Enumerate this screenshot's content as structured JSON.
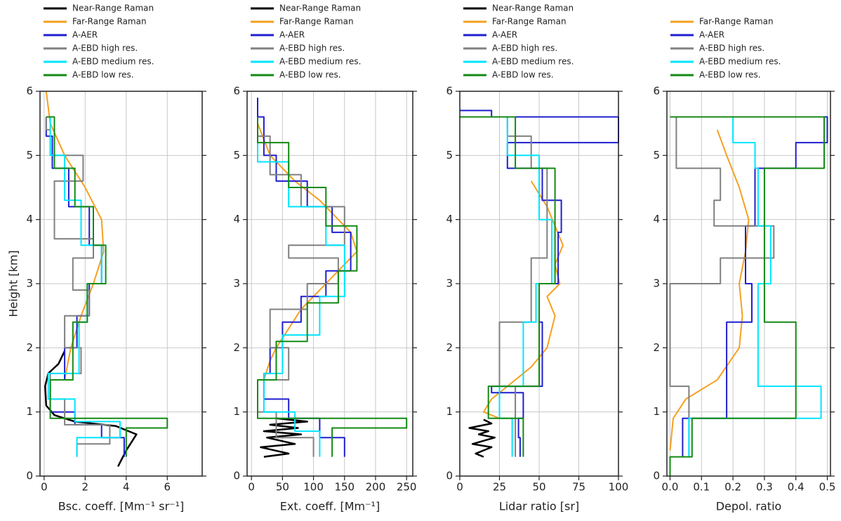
{
  "chart_data": [
    {
      "type": "line",
      "xlabel": "Bsc. coeff. [Mm⁻¹ sr⁻¹]",
      "ylabel": "Height [km]",
      "xlim": [
        -0.2,
        7.7
      ],
      "ylim": [
        0,
        6
      ],
      "xticks": [
        0,
        2,
        4,
        6
      ],
      "yticks": [
        0,
        1,
        2,
        3,
        4,
        5,
        6
      ],
      "grid": true,
      "series": [
        {
          "name": "Near-Range Raman",
          "color": "#000000",
          "x": [
            3.6,
            4.0,
            4.5,
            3.5,
            1.5,
            0.5,
            0.1,
            0.05,
            0.2,
            0.7,
            1.0
          ],
          "y": [
            0.15,
            0.4,
            0.65,
            0.78,
            0.85,
            0.95,
            1.1,
            1.4,
            1.6,
            1.75,
            1.95
          ]
        },
        {
          "name": "Far-Range Raman",
          "color": "#f5a020",
          "x": [
            1.0,
            1.3,
            1.8,
            2.4,
            2.9,
            2.8,
            2.0,
            1.0,
            0.3,
            0.1
          ],
          "y": [
            1.5,
            2.0,
            2.5,
            3.0,
            3.5,
            4.0,
            4.5,
            5.0,
            5.5,
            6.0
          ]
        },
        {
          "name": "A-AER",
          "color": "#1f1fd0",
          "x": [
            3.9,
            3.9,
            2.8,
            2.8,
            1.5,
            1.5,
            0.3,
            0.3,
            1.0,
            1.0,
            1.6,
            1.6,
            2.2,
            2.2,
            2.8,
            2.8,
            2.2,
            2.2,
            1.2,
            1.2,
            0.4,
            0.4,
            0.1,
            0.1
          ],
          "y": [
            0.3,
            0.6,
            0.6,
            0.8,
            0.8,
            1.0,
            1.0,
            1.5,
            1.5,
            2.0,
            2.0,
            2.5,
            2.5,
            3.0,
            3.0,
            3.6,
            3.6,
            4.2,
            4.2,
            4.8,
            4.8,
            5.3,
            5.3,
            5.6
          ]
        },
        {
          "name": "A-EBD high res.",
          "color": "#808080",
          "x": [
            1.6,
            1.6,
            3.2,
            3.2,
            1.0,
            1.0,
            0.3,
            0.3,
            1.8,
            1.8,
            1.0,
            1.0,
            2.2,
            2.2,
            1.4,
            1.4,
            2.4,
            2.4,
            0.5,
            0.5,
            1.9,
            1.9,
            0.3,
            0.3,
            0.1,
            0.1
          ],
          "y": [
            0.3,
            0.5,
            0.5,
            0.8,
            0.8,
            1.2,
            1.2,
            1.6,
            1.6,
            2.0,
            2.0,
            2.5,
            2.5,
            2.9,
            2.9,
            3.4,
            3.4,
            3.7,
            3.7,
            4.6,
            4.6,
            5.0,
            5.0,
            5.4,
            5.4,
            5.6
          ]
        },
        {
          "name": "A-EBD medium res.",
          "color": "#00e5ff",
          "x": [
            1.6,
            1.6,
            3.7,
            3.7,
            1.5,
            1.5,
            0.2,
            0.2,
            1.7,
            1.7,
            2.1,
            2.1,
            2.8,
            2.8,
            1.8,
            1.8,
            1.0,
            1.0,
            0.3,
            0.3,
            0.1
          ],
          "y": [
            0.3,
            0.6,
            0.6,
            0.85,
            0.85,
            1.2,
            1.2,
            1.6,
            1.6,
            2.4,
            2.4,
            3.0,
            3.0,
            3.6,
            3.6,
            4.3,
            4.3,
            5.0,
            5.0,
            5.6,
            5.6
          ]
        },
        {
          "name": "A-EBD low res.",
          "color": "#138a13",
          "x": [
            4.0,
            4.0,
            6.0,
            6.0,
            0.3,
            0.3,
            1.4,
            1.4,
            2.1,
            2.1,
            3.0,
            3.0,
            2.4,
            2.4,
            1.5,
            1.5,
            0.5,
            0.5,
            0.1,
            0.1
          ],
          "y": [
            0.3,
            0.75,
            0.75,
            0.9,
            0.9,
            1.5,
            1.5,
            2.4,
            2.4,
            3.0,
            3.0,
            3.6,
            3.6,
            4.2,
            4.2,
            4.8,
            4.8,
            5.6,
            5.6,
            5.6
          ]
        }
      ]
    },
    {
      "type": "line",
      "xlabel": "Ext. coeff. [Mm⁻¹]",
      "xlim": [
        -7,
        260
      ],
      "ylim": [
        0,
        6
      ],
      "xticks": [
        0,
        50,
        100,
        150,
        200,
        250
      ],
      "yticks": [
        0,
        1,
        2,
        3,
        4,
        5,
        6
      ],
      "grid": true,
      "series": [
        {
          "name": "Near-Range Raman",
          "color": "#000000",
          "x": [
            20,
            60,
            15,
            70,
            25,
            80,
            20,
            75,
            30,
            90,
            40
          ],
          "y": [
            0.3,
            0.35,
            0.45,
            0.5,
            0.6,
            0.65,
            0.7,
            0.75,
            0.8,
            0.85,
            0.9
          ]
        },
        {
          "name": "Far-Range Raman",
          "color": "#f5a020",
          "x": [
            20,
            30,
            40,
            60,
            80,
            110,
            140,
            170,
            160,
            140,
            110,
            70,
            30,
            10
          ],
          "y": [
            1.5,
            1.8,
            2.0,
            2.3,
            2.6,
            2.9,
            3.2,
            3.5,
            3.8,
            4.0,
            4.3,
            4.6,
            5.0,
            5.5
          ]
        },
        {
          "name": "A-AER",
          "color": "#1f1fd0",
          "x": [
            150,
            150,
            110,
            110,
            60,
            60,
            20,
            20,
            30,
            30,
            50,
            50,
            80,
            80,
            120,
            120,
            160,
            160,
            130,
            130,
            90,
            90,
            40,
            40,
            20,
            20,
            10,
            10
          ],
          "y": [
            0.3,
            0.6,
            0.6,
            0.9,
            0.9,
            1.2,
            1.2,
            1.6,
            1.6,
            2.0,
            2.0,
            2.4,
            2.4,
            2.8,
            2.8,
            3.2,
            3.2,
            3.8,
            3.8,
            4.2,
            4.2,
            4.6,
            4.6,
            5.0,
            5.0,
            5.6,
            5.6,
            5.9
          ]
        },
        {
          "name": "A-EBD high res.",
          "color": "#808080",
          "x": [
            100,
            100,
            40,
            40,
            10,
            10,
            60,
            60,
            30,
            30,
            90,
            90,
            140,
            140,
            60,
            60,
            150,
            150,
            80,
            80,
            30,
            30,
            10
          ],
          "y": [
            0.3,
            0.6,
            0.6,
            1.0,
            1.0,
            1.5,
            1.5,
            2.0,
            2.0,
            2.6,
            2.6,
            3.0,
            3.0,
            3.4,
            3.4,
            3.6,
            3.6,
            4.2,
            4.2,
            4.7,
            4.7,
            5.3,
            5.3
          ]
        },
        {
          "name": "A-EBD medium res.",
          "color": "#00e5ff",
          "x": [
            110,
            110,
            70,
            70,
            20,
            20,
            50,
            50,
            110,
            110,
            150,
            150,
            120,
            120,
            60,
            60,
            10,
            10
          ],
          "y": [
            0.3,
            0.7,
            0.7,
            1.0,
            1.0,
            1.6,
            1.6,
            2.2,
            2.2,
            2.8,
            2.8,
            3.6,
            3.6,
            4.2,
            4.2,
            4.9,
            4.9,
            5.6
          ]
        },
        {
          "name": "A-EBD low res.",
          "color": "#138a13",
          "x": [
            130,
            130,
            250,
            250,
            10,
            10,
            40,
            40,
            90,
            90,
            140,
            140,
            170,
            170,
            120,
            120,
            60,
            60,
            10,
            10
          ],
          "y": [
            0.3,
            0.75,
            0.75,
            0.9,
            0.9,
            1.5,
            1.5,
            2.1,
            2.1,
            2.7,
            2.7,
            3.2,
            3.2,
            3.9,
            3.9,
            4.5,
            4.5,
            5.2,
            5.2,
            5.6
          ]
        }
      ]
    },
    {
      "type": "line",
      "xlabel": "Lidar ratio [sr]",
      "xlim": [
        0,
        100
      ],
      "ylim": [
        0,
        6
      ],
      "xticks": [
        0,
        25,
        50,
        75,
        100
      ],
      "yticks": [
        0,
        1,
        2,
        3,
        4,
        5,
        6
      ],
      "grid": true,
      "series": [
        {
          "name": "Near-Range Raman",
          "color": "#000000",
          "x": [
            15,
            10,
            20,
            8,
            22,
            12,
            18,
            6,
            20,
            15
          ],
          "y": [
            0.3,
            0.35,
            0.45,
            0.5,
            0.6,
            0.65,
            0.7,
            0.75,
            0.82,
            0.88
          ]
        },
        {
          "name": "Far-Range Raman",
          "color": "#f5a020",
          "x": [
            25,
            15,
            20,
            30,
            45,
            55,
            60,
            55,
            63,
            60,
            65,
            60,
            55,
            50,
            45
          ],
          "y": [
            0.9,
            1.0,
            1.2,
            1.4,
            1.7,
            2.0,
            2.5,
            2.8,
            3.0,
            3.3,
            3.6,
            3.9,
            4.2,
            4.4,
            4.6
          ]
        },
        {
          "name": "A-AER",
          "color": "#1f1fd0",
          "x": [
            38,
            38,
            37,
            37,
            40,
            40,
            20,
            20,
            52,
            52,
            50,
            50,
            62,
            62,
            64,
            64,
            52,
            52,
            30,
            30,
            100,
            100,
            20,
            20,
            0
          ],
          "y": [
            0.3,
            0.6,
            0.6,
            0.9,
            0.9,
            1.3,
            1.3,
            1.4,
            1.4,
            2.4,
            2.4,
            3.0,
            3.0,
            3.8,
            3.8,
            4.3,
            4.3,
            4.8,
            4.8,
            5.2,
            5.2,
            5.6,
            5.6,
            5.7,
            5.7
          ]
        },
        {
          "name": "A-EBD high res.",
          "color": "#808080",
          "x": [
            35,
            35,
            25,
            25,
            45,
            45,
            55,
            55,
            45,
            45,
            30,
            30
          ],
          "y": [
            0.3,
            1.4,
            1.4,
            2.4,
            2.4,
            3.4,
            3.4,
            4.8,
            4.8,
            5.3,
            5.3,
            5.6
          ]
        },
        {
          "name": "A-EBD medium res.",
          "color": "#00e5ff",
          "x": [
            33,
            33,
            25,
            25,
            40,
            40,
            48,
            48,
            58,
            58,
            50,
            50,
            30,
            30
          ],
          "y": [
            0.3,
            0.9,
            0.9,
            1.4,
            1.4,
            2.4,
            2.4,
            3.0,
            3.0,
            4.0,
            4.0,
            5.0,
            5.0,
            5.6
          ]
        },
        {
          "name": "A-EBD low res.",
          "color": "#138a13",
          "x": [
            40,
            40,
            18,
            18,
            50,
            50,
            60,
            60,
            35,
            35,
            0
          ],
          "y": [
            0.3,
            0.9,
            0.9,
            1.4,
            1.4,
            3.0,
            3.0,
            4.8,
            4.8,
            5.6,
            5.6
          ]
        }
      ]
    },
    {
      "type": "line",
      "xlabel": "Depol. ratio",
      "xlim": [
        -0.01,
        0.51
      ],
      "ylim": [
        0,
        6
      ],
      "xticks": [
        {
          "value": 0,
          "label": "0.0"
        },
        0.1,
        0.2,
        0.3,
        0.4,
        0.5
      ],
      "yticks": [
        0,
        1,
        2,
        3,
        4,
        5,
        6
      ],
      "grid": true,
      "series": [
        {
          "name": "Far-Range Raman",
          "color": "#f5a020",
          "x": [
            0.0,
            0.01,
            0.05,
            0.15,
            0.22,
            0.23,
            0.22,
            0.24,
            0.25,
            0.22,
            0.18,
            0.15
          ],
          "y": [
            0.4,
            0.9,
            1.2,
            1.5,
            2.0,
            2.5,
            3.0,
            3.5,
            4.0,
            4.5,
            5.0,
            5.4
          ]
        },
        {
          "name": "A-AER",
          "color": "#1f1fd0",
          "x": [
            0.04,
            0.04,
            0.18,
            0.18,
            0.26,
            0.26,
            0.24,
            0.24,
            0.27,
            0.27,
            0.4,
            0.4,
            0.5,
            0.5,
            0
          ],
          "y": [
            0.3,
            0.9,
            0.9,
            2.4,
            2.4,
            3.0,
            3.0,
            3.9,
            3.9,
            4.8,
            4.8,
            5.2,
            5.2,
            5.6,
            5.6
          ]
        },
        {
          "name": "A-EBD high res.",
          "color": "#808080",
          "x": [
            0.06,
            0.06,
            0,
            0,
            0.16,
            0.16,
            0.33,
            0.33,
            0.14,
            0.14,
            0.16,
            0.16,
            0.02,
            0.02
          ],
          "y": [
            0.3,
            1.4,
            1.4,
            3.0,
            3.0,
            3.4,
            3.4,
            3.9,
            3.9,
            4.3,
            4.3,
            4.8,
            4.8,
            5.6
          ]
        },
        {
          "name": "A-EBD medium res.",
          "color": "#00e5ff",
          "x": [
            0.06,
            0.06,
            0.48,
            0.48,
            0.28,
            0.28,
            0.32,
            0.32,
            0.28,
            0.28,
            0.27,
            0.27,
            0.2,
            0.2
          ],
          "y": [
            0.3,
            0.9,
            0.9,
            1.4,
            1.4,
            3.0,
            3.0,
            3.9,
            3.9,
            4.8,
            4.8,
            5.2,
            5.2,
            5.6
          ]
        },
        {
          "name": "A-EBD low res.",
          "color": "#138a13",
          "x": [
            0,
            0,
            0.07,
            0.07,
            0.4,
            0.4,
            0.3,
            0.3,
            0.49,
            0.49,
            0
          ],
          "y": [
            0.0,
            0.3,
            0.3,
            0.9,
            0.9,
            2.4,
            2.4,
            4.8,
            4.8,
            5.6,
            5.6
          ]
        }
      ]
    }
  ]
}
